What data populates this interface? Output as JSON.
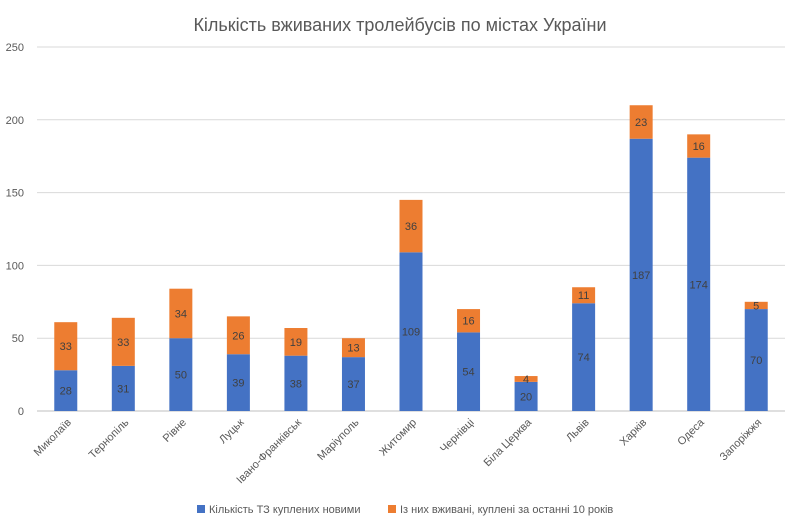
{
  "chart_data": {
    "type": "bar",
    "stacked": true,
    "title": "Кількість вживаних тролейбусів по містах України",
    "xlabel": "",
    "ylabel": "",
    "ylim": [
      0,
      250
    ],
    "yticks": [
      0,
      50,
      100,
      150,
      200,
      250
    ],
    "grid": true,
    "legend_position": "bottom",
    "categories": [
      "Миколаїв",
      "Тернопіль",
      "Рівне",
      "Луцьк",
      "Івано-Франківськ",
      "Маріуполь",
      "Житомир",
      "Чернівці",
      "Біла Церква",
      "Львів",
      "Харків",
      "Одеса",
      "Запоріжжя"
    ],
    "series": [
      {
        "name": "Кількість ТЗ куплених новими",
        "color": "#4472c4",
        "values": [
          28,
          31,
          50,
          39,
          38,
          37,
          109,
          54,
          20,
          74,
          187,
          174,
          70
        ]
      },
      {
        "name": "Із них вживані, куплені за останні 10 років",
        "color": "#ed7d31",
        "values": [
          33,
          33,
          34,
          26,
          19,
          13,
          36,
          16,
          4,
          11,
          23,
          16,
          5
        ]
      }
    ]
  }
}
